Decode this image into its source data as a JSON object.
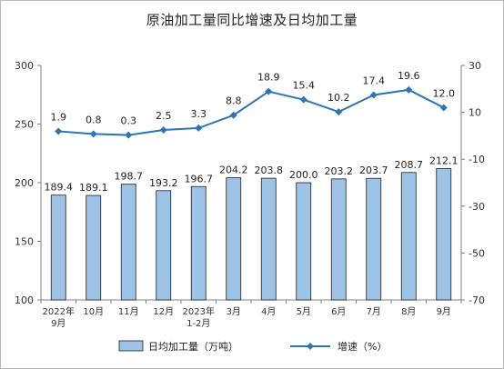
{
  "chart_data": {
    "type": "bar",
    "title": "原油加工量同比增速及日均加工量",
    "categories": [
      [
        "2022年",
        "9月"
      ],
      [
        "10月"
      ],
      [
        "11月"
      ],
      [
        "12月"
      ],
      [
        "2023年",
        "1-2月"
      ],
      [
        "3月"
      ],
      [
        "4月"
      ],
      [
        "5月"
      ],
      [
        "6月"
      ],
      [
        "7月"
      ],
      [
        "8月"
      ],
      [
        "9月"
      ]
    ],
    "series": [
      {
        "name": "日均加工量（万吨）",
        "type": "bar",
        "axis": "left",
        "values": [
          189.4,
          189.1,
          198.7,
          193.2,
          196.7,
          204.2,
          203.8,
          200.0,
          203.2,
          203.7,
          208.7,
          212.1
        ],
        "labels": [
          "189.4",
          "189.1",
          "198.7",
          "193.2",
          "196.7",
          "204.2",
          "203.8",
          "200.0",
          "203.2",
          "203.7",
          "208.7",
          "212.1"
        ],
        "color": "#9dc3e6"
      },
      {
        "name": "增速（%）",
        "type": "line",
        "axis": "right",
        "values": [
          1.9,
          0.8,
          0.3,
          2.5,
          3.3,
          8.8,
          18.9,
          15.4,
          10.2,
          17.4,
          19.6,
          12.0
        ],
        "labels": [
          "1.9",
          "0.8",
          "0.3",
          "2.5",
          "3.3",
          "8.8",
          "18.9",
          "15.4",
          "10.2",
          "17.4",
          "19.6",
          "12.0"
        ],
        "color": "#2e75b6"
      }
    ],
    "y_left": {
      "min": 100,
      "max": 300,
      "ticks": [
        "300",
        "250",
        "200",
        "150",
        "100"
      ]
    },
    "y_right": {
      "min": -70,
      "max": 30,
      "ticks": [
        "30",
        "10",
        "-10",
        "-30",
        "-50",
        "-70"
      ]
    },
    "grid": false,
    "legend_position": "bottom"
  }
}
